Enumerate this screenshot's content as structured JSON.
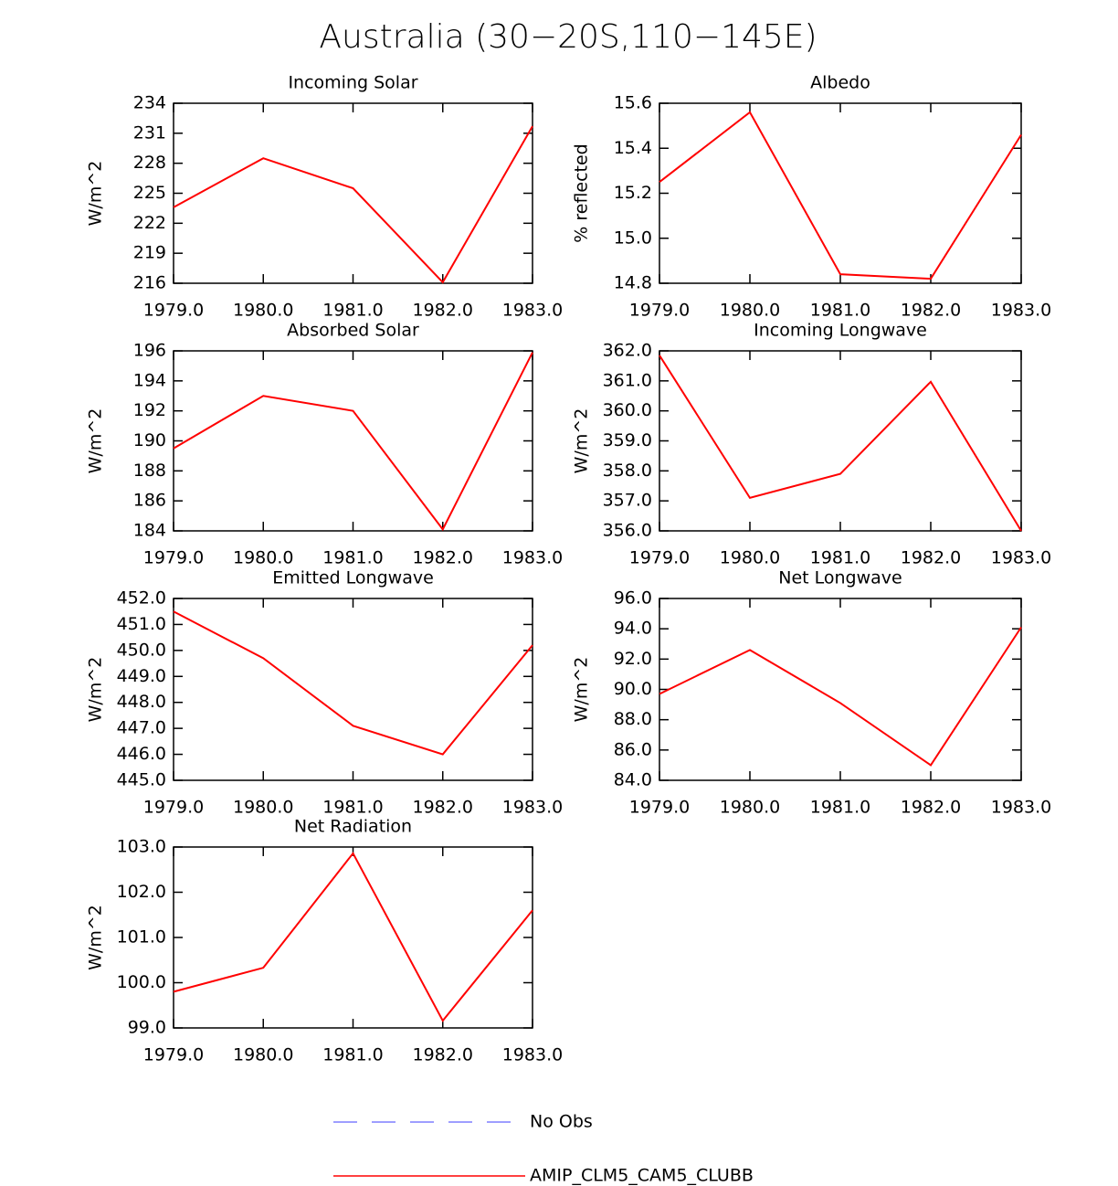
{
  "title": "Australia (30−20S,110−145E)",
  "chart_data": [
    {
      "type": "line",
      "title": "Incoming Solar",
      "ylabel": "W/m^2",
      "x": [
        1979,
        1980,
        1981,
        1982,
        1983
      ],
      "xlim": [
        1979,
        1983
      ],
      "xticks": [
        {
          "value": 1979,
          "label": "1979.0"
        },
        {
          "value": 1980,
          "label": "1980.0"
        },
        {
          "value": 1981,
          "label": "1981.0"
        },
        {
          "value": 1982,
          "label": "1982.0"
        },
        {
          "value": 1983,
          "label": "1983.0"
        }
      ],
      "ylim": [
        216,
        234
      ],
      "yticks": [
        216,
        219,
        222,
        225,
        228,
        231,
        234
      ],
      "series": [
        {
          "color": "#ff0000",
          "values": [
            223.6,
            228.5,
            225.5,
            216.1,
            231.7
          ]
        }
      ]
    },
    {
      "type": "line",
      "title": "Albedo",
      "ylabel": "% reflected",
      "x": [
        1979,
        1980,
        1981,
        1982,
        1983
      ],
      "xlim": [
        1979,
        1983
      ],
      "xticks": [
        {
          "value": 1979,
          "label": "1979.0"
        },
        {
          "value": 1980,
          "label": "1980.0"
        },
        {
          "value": 1981,
          "label": "1981.0"
        },
        {
          "value": 1982,
          "label": "1982.0"
        },
        {
          "value": 1983,
          "label": "1983.0"
        }
      ],
      "ylim": [
        14.8,
        15.6
      ],
      "yticks": [
        14.8,
        {
          "value": 15,
          "label": "15.0"
        },
        15.2,
        15.4,
        15.6
      ],
      "series": [
        {
          "color": "#ff0000",
          "values": [
            15.25,
            15.56,
            14.84,
            14.82,
            15.46
          ]
        }
      ]
    },
    {
      "type": "line",
      "title": "Absorbed Solar",
      "ylabel": "W/m^2",
      "x": [
        1979,
        1980,
        1981,
        1982,
        1983
      ],
      "xlim": [
        1979,
        1983
      ],
      "xticks": [
        {
          "value": 1979,
          "label": "1979.0"
        },
        {
          "value": 1980,
          "label": "1980.0"
        },
        {
          "value": 1981,
          "label": "1981.0"
        },
        {
          "value": 1982,
          "label": "1982.0"
        },
        {
          "value": 1983,
          "label": "1983.0"
        }
      ],
      "ylim": [
        184,
        196
      ],
      "yticks": [
        184,
        186,
        188,
        190,
        192,
        194,
        196
      ],
      "series": [
        {
          "color": "#ff0000",
          "values": [
            189.5,
            193.0,
            192.0,
            184.1,
            195.9
          ]
        }
      ]
    },
    {
      "type": "line",
      "title": "Incoming Longwave",
      "ylabel": "W/m^2",
      "x": [
        1979,
        1980,
        1981,
        1982,
        1983
      ],
      "xlim": [
        1979,
        1983
      ],
      "xticks": [
        {
          "value": 1979,
          "label": "1979.0"
        },
        {
          "value": 1980,
          "label": "1980.0"
        },
        {
          "value": 1981,
          "label": "1981.0"
        },
        {
          "value": 1982,
          "label": "1982.0"
        },
        {
          "value": 1983,
          "label": "1983.0"
        }
      ],
      "ylim": [
        356,
        362
      ],
      "yticks": [
        {
          "value": 356,
          "label": "356.0"
        },
        {
          "value": 357,
          "label": "357.0"
        },
        {
          "value": 358,
          "label": "358.0"
        },
        {
          "value": 359,
          "label": "359.0"
        },
        {
          "value": 360,
          "label": "360.0"
        },
        {
          "value": 361,
          "label": "361.0"
        },
        {
          "value": 362,
          "label": "362.0"
        }
      ],
      "series": [
        {
          "color": "#ff0000",
          "values": [
            361.85,
            357.1,
            357.9,
            360.97,
            356.0
          ]
        }
      ]
    },
    {
      "type": "line",
      "title": "Emitted Longwave",
      "ylabel": "W/m^2",
      "x": [
        1979,
        1980,
        1981,
        1982,
        1983
      ],
      "xlim": [
        1979,
        1983
      ],
      "xticks": [
        {
          "value": 1979,
          "label": "1979.0"
        },
        {
          "value": 1980,
          "label": "1980.0"
        },
        {
          "value": 1981,
          "label": "1981.0"
        },
        {
          "value": 1982,
          "label": "1982.0"
        },
        {
          "value": 1983,
          "label": "1983.0"
        }
      ],
      "ylim": [
        445,
        452
      ],
      "yticks": [
        {
          "value": 445,
          "label": "445.0"
        },
        {
          "value": 446,
          "label": "446.0"
        },
        {
          "value": 447,
          "label": "447.0"
        },
        {
          "value": 448,
          "label": "448.0"
        },
        {
          "value": 449,
          "label": "449.0"
        },
        {
          "value": 450,
          "label": "450.0"
        },
        {
          "value": 451,
          "label": "451.0"
        },
        {
          "value": 452,
          "label": "452.0"
        }
      ],
      "series": [
        {
          "color": "#ff0000",
          "values": [
            451.5,
            449.7,
            447.1,
            446.0,
            450.2
          ]
        }
      ]
    },
    {
      "type": "line",
      "title": "Net Longwave",
      "ylabel": "W/m^2",
      "x": [
        1979,
        1980,
        1981,
        1982,
        1983
      ],
      "xlim": [
        1979,
        1983
      ],
      "xticks": [
        {
          "value": 1979,
          "label": "1979.0"
        },
        {
          "value": 1980,
          "label": "1980.0"
        },
        {
          "value": 1981,
          "label": "1981.0"
        },
        {
          "value": 1982,
          "label": "1982.0"
        },
        {
          "value": 1983,
          "label": "1983.0"
        }
      ],
      "ylim": [
        84,
        96
      ],
      "yticks": [
        {
          "value": 84,
          "label": "84.0"
        },
        {
          "value": 86,
          "label": "86.0"
        },
        {
          "value": 88,
          "label": "88.0"
        },
        {
          "value": 90,
          "label": "90.0"
        },
        {
          "value": 92,
          "label": "92.0"
        },
        {
          "value": 94,
          "label": "94.0"
        },
        {
          "value": 96,
          "label": "96.0"
        }
      ],
      "series": [
        {
          "color": "#ff0000",
          "values": [
            89.7,
            92.6,
            89.1,
            85.0,
            94.1
          ]
        }
      ]
    },
    {
      "type": "line",
      "title": "Net Radiation",
      "ylabel": "W/m^2",
      "x": [
        1979,
        1980,
        1981,
        1982,
        1983
      ],
      "xlim": [
        1979,
        1983
      ],
      "xticks": [
        {
          "value": 1979,
          "label": "1979.0"
        },
        {
          "value": 1980,
          "label": "1980.0"
        },
        {
          "value": 1981,
          "label": "1981.0"
        },
        {
          "value": 1982,
          "label": "1982.0"
        },
        {
          "value": 1983,
          "label": "1983.0"
        }
      ],
      "ylim": [
        99,
        103
      ],
      "yticks": [
        {
          "value": 99,
          "label": "99.0"
        },
        {
          "value": 100,
          "label": "100.0"
        },
        {
          "value": 101,
          "label": "101.0"
        },
        {
          "value": 102,
          "label": "102.0"
        },
        {
          "value": 103,
          "label": "103.0"
        }
      ],
      "series": [
        {
          "color": "#ff0000",
          "values": [
            99.8,
            100.33,
            102.86,
            99.16,
            101.6
          ]
        }
      ]
    }
  ],
  "legend": [
    {
      "name": "No Obs",
      "color": "#7f7fff",
      "dashed": true
    },
    {
      "name": "AMIP_CLM5_CAM5_CLUBB",
      "color": "#ff0000",
      "dashed": false
    }
  ]
}
